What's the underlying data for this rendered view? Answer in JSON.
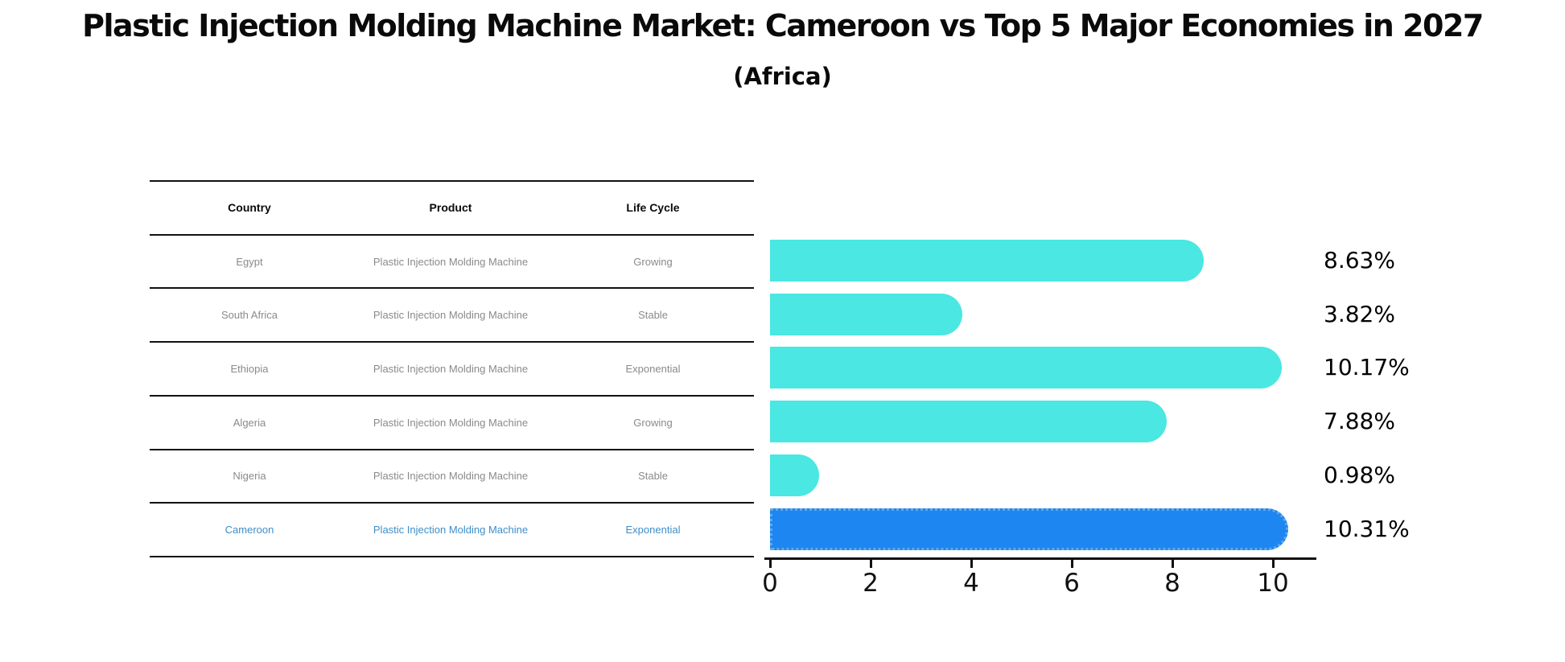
{
  "title": "Plastic Injection Molding Machine Market: Cameroon vs Top 5 Major Economies in 2027",
  "subtitle": "(Africa)",
  "table": {
    "headers": [
      "Country",
      "Product",
      "Life Cycle"
    ],
    "rows": [
      {
        "country": "Egypt",
        "product": "Plastic Injection Molding Machine",
        "life_cycle": "Growing",
        "highlight": false
      },
      {
        "country": "South Africa",
        "product": "Plastic Injection Molding Machine",
        "life_cycle": "Stable",
        "highlight": false
      },
      {
        "country": "Ethiopia",
        "product": "Plastic Injection Molding Machine",
        "life_cycle": "Exponential",
        "highlight": false
      },
      {
        "country": "Algeria",
        "product": "Plastic Injection Molding Machine",
        "life_cycle": "Growing",
        "highlight": false
      },
      {
        "country": "Nigeria",
        "product": "Plastic Injection Molding Machine",
        "life_cycle": "Stable",
        "highlight": false
      },
      {
        "country": "Cameroon",
        "product": "Plastic Injection Molding Machine",
        "life_cycle": "Exponential",
        "highlight": true
      }
    ]
  },
  "chart_data": {
    "type": "bar",
    "orientation": "horizontal",
    "categories": [
      "Egypt",
      "South Africa",
      "Ethiopia",
      "Algeria",
      "Nigeria",
      "Cameroon"
    ],
    "values": [
      8.63,
      3.82,
      10.17,
      7.88,
      0.98,
      10.31
    ],
    "value_labels": [
      "8.63%",
      "3.82%",
      "10.17%",
      "7.88%",
      "0.98%",
      "10.31%"
    ],
    "xticks": [
      0,
      2,
      4,
      6,
      8,
      10
    ],
    "xlim": [
      0,
      10.85
    ],
    "grid": false,
    "legend": "none",
    "bar_color": "#4AE7E3",
    "highlight_index": 5,
    "highlight_color": "#1E86F0",
    "highlight_border_color": "#5FA9EE",
    "highlight_text_color": "#3E8EC9"
  }
}
